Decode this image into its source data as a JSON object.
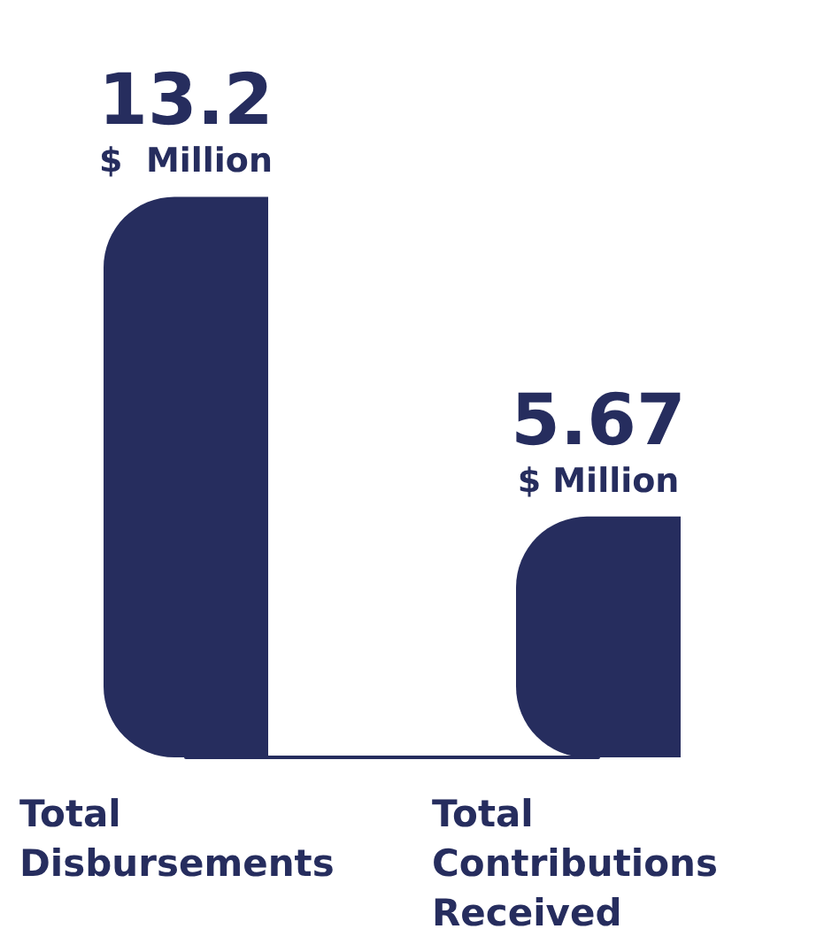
{
  "chart_data": {
    "type": "bar",
    "categories": [
      "Total Disbursements",
      "Total Contributions Received"
    ],
    "values": [
      13.2,
      5.67
    ],
    "color": "#262d5e",
    "value_labels": [
      "13.2\n$  Million",
      "5.67\n$ Million"
    ],
    "tick_labels": "x"
  }
}
